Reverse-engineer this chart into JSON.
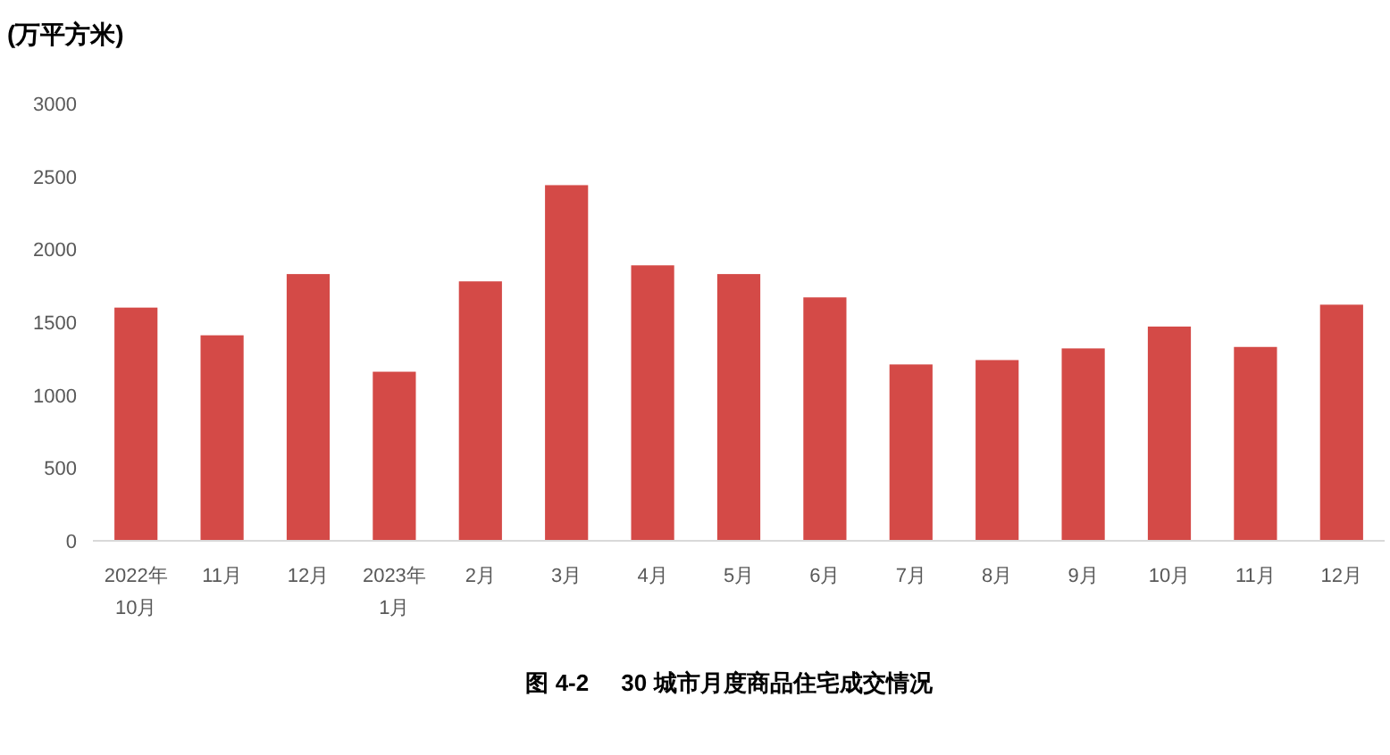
{
  "chart_data": {
    "type": "bar",
    "title": "图 4-2     30 城市月度商品住宅成交情况",
    "ylabel": "(万平方米)",
    "categories": [
      "2022年\n10月",
      "11月",
      "12月",
      "2023年\n1月",
      "2月",
      "3月",
      "4月",
      "5月",
      "6月",
      "7月",
      "8月",
      "9月",
      "10月",
      "11月",
      "12月"
    ],
    "values": [
      1600,
      1410,
      1830,
      1160,
      1780,
      2440,
      1890,
      1830,
      1670,
      1210,
      1240,
      1320,
      1470,
      1330,
      1620
    ],
    "color": "#d44a47",
    "ylim": [
      0,
      3000
    ],
    "yticks": [
      0,
      500,
      1000,
      1500,
      2000,
      2500,
      3000
    ],
    "grid": false
  }
}
